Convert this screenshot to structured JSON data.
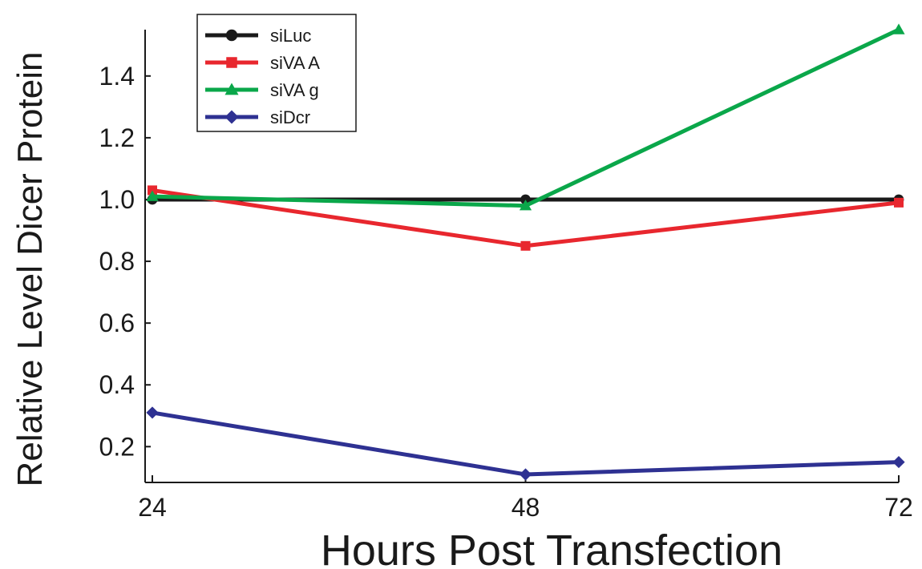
{
  "chart_data": {
    "type": "line",
    "title": "",
    "xlabel": "Hours Post Transfection",
    "ylabel": "Relative Level Dicer Protein",
    "x": [
      24,
      48,
      72
    ],
    "xticks": [
      "24",
      "48",
      "72"
    ],
    "yticks": [
      "0.2",
      "0.4",
      "0.6",
      "0.8",
      "1.0",
      "1.2",
      "1.4"
    ],
    "xlim": [
      24,
      72
    ],
    "ylim": [
      0.11,
      1.55
    ],
    "grid": false,
    "legend_position": "top-left",
    "series": [
      {
        "name": "siLuc",
        "values": [
          1.0,
          1.0,
          1.0
        ],
        "color": "#1a1a1a",
        "marker": "circle"
      },
      {
        "name": "siVA A",
        "values": [
          1.03,
          0.85,
          0.99
        ],
        "color": "#e8272e",
        "marker": "square"
      },
      {
        "name": "siVA g",
        "values": [
          1.01,
          0.98,
          1.55
        ],
        "color": "#0aa74a",
        "marker": "triangle"
      },
      {
        "name": "siDcr",
        "values": [
          0.31,
          0.11,
          0.15
        ],
        "color": "#2e3192",
        "marker": "diamond"
      }
    ]
  }
}
